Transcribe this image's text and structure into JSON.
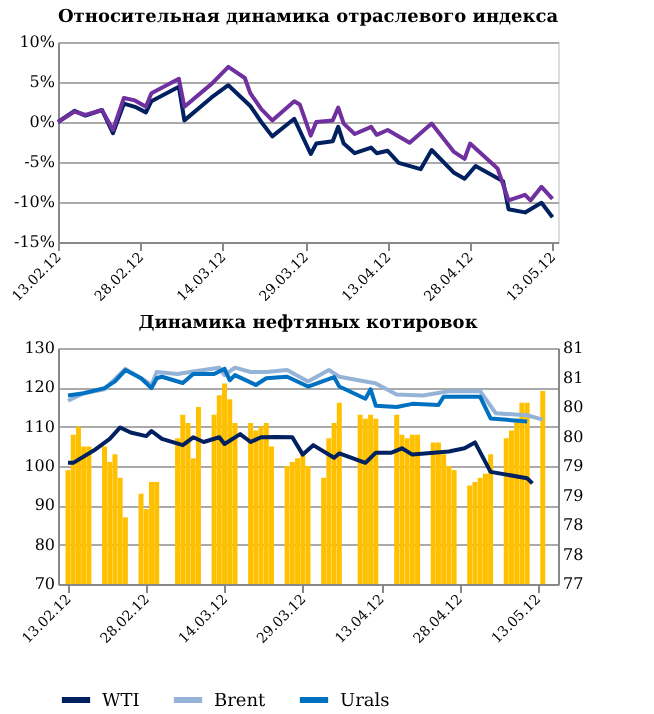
{
  "chart_data": [
    {
      "type": "line",
      "title": "Относительная динамика отраслевого индекса",
      "xlim": [
        "2012-02-13",
        "2012-05-14"
      ],
      "xticks": [
        {
          "value": "2012-02-13",
          "label": "13.02.12"
        },
        {
          "value": "2012-02-28",
          "label": "28.02.12"
        },
        {
          "value": "2012-03-14",
          "label": "14.03.12"
        },
        {
          "value": "2012-03-29",
          "label": "29.03.12"
        },
        {
          "value": "2012-04-13",
          "label": "13.04.12"
        },
        {
          "value": "2012-04-28",
          "label": "28.04.12"
        },
        {
          "value": "2012-05-13",
          "label": "13.05.12"
        }
      ],
      "ylim": [
        -15,
        10
      ],
      "yticks": [
        {
          "value": -15,
          "label": "-15%"
        },
        {
          "value": -10,
          "label": "-10%"
        },
        {
          "value": -5,
          "label": "-5%"
        },
        {
          "value": 0,
          "label": "0%"
        },
        {
          "value": 5,
          "label": "5%"
        },
        {
          "value": 10,
          "label": "10%"
        }
      ],
      "grid": "y",
      "legend": false,
      "series": [
        {
          "color": "#002060",
          "x": [
            "2012-02-13",
            "2012-02-16",
            "2012-02-18",
            "2012-02-21",
            "2012-02-23",
            "2012-02-25",
            "2012-02-27",
            "2012-02-29",
            "2012-03-01",
            "2012-03-06",
            "2012-03-07",
            "2012-03-12",
            "2012-03-15",
            "2012-03-19",
            "2012-03-21",
            "2012-03-23",
            "2012-03-27",
            "2012-03-30",
            "2012-03-31",
            "2012-04-03",
            "2012-04-04",
            "2012-04-05",
            "2012-04-07",
            "2012-04-10",
            "2012-04-11",
            "2012-04-13",
            "2012-04-15",
            "2012-04-19",
            "2012-04-21",
            "2012-04-25",
            "2012-04-27",
            "2012-04-29",
            "2012-05-04",
            "2012-05-05",
            "2012-05-08",
            "2012-05-11",
            "2012-05-13"
          ],
          "values": [
            0,
            1.4,
            0.8,
            1.5,
            -1.4,
            2.3,
            1.9,
            1.2,
            2.6,
            4.4,
            0.2,
            3.1,
            4.6,
            2.0,
            0,
            -1.8,
            0.4,
            -4.0,
            -2.7,
            -2.4,
            -0.6,
            -2.7,
            -3.9,
            -3.2,
            -3.9,
            -3.6,
            -5.1,
            -5.9,
            -3.5,
            -6.3,
            -7.1,
            -5.5,
            -7.4,
            -10.9,
            -11.3,
            -10.1,
            -11.9
          ]
        },
        {
          "color": "#7030a0",
          "x": [
            "2012-02-13",
            "2012-02-16",
            "2012-02-18",
            "2012-02-21",
            "2012-02-23",
            "2012-02-25",
            "2012-02-27",
            "2012-02-29",
            "2012-03-01",
            "2012-03-06",
            "2012-03-07",
            "2012-03-12",
            "2012-03-15",
            "2012-03-18",
            "2012-03-19",
            "2012-03-21",
            "2012-03-23",
            "2012-03-27",
            "2012-03-28",
            "2012-03-30",
            "2012-03-31",
            "2012-04-03",
            "2012-04-04",
            "2012-04-05",
            "2012-04-07",
            "2012-04-10",
            "2012-04-11",
            "2012-04-13",
            "2012-04-17",
            "2012-04-21",
            "2012-04-25",
            "2012-04-27",
            "2012-04-28",
            "2012-05-03",
            "2012-05-05",
            "2012-05-08",
            "2012-05-09",
            "2012-05-11",
            "2012-05-13"
          ],
          "values": [
            0,
            1.3,
            0.9,
            1.5,
            -1.0,
            3.0,
            2.7,
            1.9,
            3.6,
            5.4,
            1.9,
            4.8,
            6.9,
            5.5,
            3.6,
            1.6,
            0.2,
            2.6,
            2.2,
            -1.7,
            0,
            0.2,
            1.8,
            -0.2,
            -1.5,
            -0.6,
            -1.6,
            -1.0,
            -2.6,
            -0.2,
            -3.7,
            -4.6,
            -2.7,
            -5.8,
            -9.8,
            -9.1,
            -9.8,
            -8.1,
            -9.6
          ]
        }
      ]
    },
    {
      "type": "line",
      "title": "Динамика нефтяных котировок",
      "xlim": [
        "2012-02-13",
        "2012-05-15"
      ],
      "xticks": [
        {
          "value": "2012-02-13",
          "label": "13.02.12"
        },
        {
          "value": "2012-02-28",
          "label": "28.02.12"
        },
        {
          "value": "2012-03-14",
          "label": "14.03.12"
        },
        {
          "value": "2012-03-29",
          "label": "29.03.12"
        },
        {
          "value": "2012-04-13",
          "label": "13.04.12"
        },
        {
          "value": "2012-04-28",
          "label": "28.04.12"
        },
        {
          "value": "2012-05-13",
          "label": "13.05.12"
        }
      ],
      "ylim": [
        70,
        130
      ],
      "yticks": [
        70,
        80,
        90,
        100,
        110,
        120,
        130
      ],
      "y2lim": [
        77,
        81
      ],
      "y2ticks": [
        77,
        {
          "value": 77.5,
          "label": "78"
        },
        78,
        {
          "value": 78.5,
          "label": "79"
        },
        79,
        {
          "value": 79.5,
          "label": "80"
        },
        80,
        {
          "value": 80.5,
          "label": "81"
        },
        81
      ],
      "grid": "y",
      "legend": "bottom",
      "series": [
        {
          "type": "bar",
          "axis": "y2",
          "color": "#ffc000",
          "x": [
            "2012-02-13",
            "2012-02-14",
            "2012-02-15",
            "2012-02-16",
            "2012-02-17",
            "2012-02-20",
            "2012-02-21",
            "2012-02-22",
            "2012-02-23",
            "2012-02-24",
            "2012-02-27",
            "2012-02-28",
            "2012-02-29",
            "2012-03-01",
            "2012-03-05",
            "2012-03-06",
            "2012-03-07",
            "2012-03-08",
            "2012-03-09",
            "2012-03-12",
            "2012-03-13",
            "2012-03-14",
            "2012-03-15",
            "2012-03-16",
            "2012-03-19",
            "2012-03-20",
            "2012-03-21",
            "2012-03-22",
            "2012-03-23",
            "2012-03-26",
            "2012-03-27",
            "2012-03-28",
            "2012-03-29",
            "2012-03-30",
            "2012-04-02",
            "2012-04-03",
            "2012-04-04",
            "2012-04-05",
            "2012-04-09",
            "2012-04-10",
            "2012-04-11",
            "2012-04-12",
            "2012-04-16",
            "2012-04-17",
            "2012-04-18",
            "2012-04-19",
            "2012-04-20",
            "2012-04-23",
            "2012-04-24",
            "2012-04-25",
            "2012-04-26",
            "2012-04-27",
            "2012-04-30",
            "2012-05-01",
            "2012-05-02",
            "2012-05-03",
            "2012-05-04",
            "2012-05-07",
            "2012-05-08",
            "2012-05-09",
            "2012-05-10",
            "2012-05-11",
            "2012-05-14"
          ],
          "values": [
            78.93,
            79.53,
            79.67,
            79.33,
            79.33,
            79.33,
            79.07,
            79.2,
            78.8,
            78.13,
            78.53,
            78.27,
            78.73,
            78.73,
            79.47,
            79.87,
            79.73,
            79.13,
            80.0,
            79.87,
            80.2,
            80.4,
            80.13,
            79.73,
            79.73,
            79.6,
            79.67,
            79.73,
            79.33,
            79.0,
            79.07,
            79.13,
            79.2,
            79.0,
            78.8,
            79.47,
            79.73,
            80.07,
            79.87,
            79.8,
            79.87,
            79.8,
            79.87,
            79.53,
            79.47,
            79.53,
            79.53,
            79.4,
            79.4,
            79.2,
            79.0,
            78.93,
            78.67,
            78.73,
            78.8,
            78.87,
            79.2,
            79.47,
            79.6,
            79.8,
            80.07,
            80.07,
            80.27
          ]
        },
        {
          "name": "WTI",
          "color": "#002060",
          "x": [
            "2012-02-13",
            "2012-02-14",
            "2012-02-18",
            "2012-02-21",
            "2012-02-23",
            "2012-02-25",
            "2012-02-28",
            "2012-02-29",
            "2012-03-02",
            "2012-03-06",
            "2012-03-08",
            "2012-03-10",
            "2012-03-13",
            "2012-03-14",
            "2012-03-17",
            "2012-03-19",
            "2012-03-21",
            "2012-03-24",
            "2012-03-27",
            "2012-03-29",
            "2012-03-31",
            "2012-04-04",
            "2012-04-05",
            "2012-04-10",
            "2012-04-12",
            "2012-04-15",
            "2012-04-17",
            "2012-04-19",
            "2012-04-26",
            "2012-04-29",
            "2012-05-01",
            "2012-05-04",
            "2012-05-11",
            "2012-05-12"
          ],
          "values": [
            100.8,
            100.8,
            104.0,
            106.9,
            109.8,
            108.5,
            107.6,
            108.9,
            106.9,
            105.3,
            107.3,
            106.1,
            107.3,
            105.6,
            108.1,
            106.1,
            107.3,
            107.4,
            107.3,
            102.9,
            105.3,
            102.1,
            103.2,
            100.8,
            103.4,
            103.4,
            104.5,
            102.9,
            103.7,
            104.5,
            106.0,
            98.5,
            96.9,
            95.6
          ]
        },
        {
          "name": "Brent",
          "color": "#95b3d7",
          "x": [
            "2012-02-13",
            "2012-02-16",
            "2012-02-20",
            "2012-02-24",
            "2012-02-27",
            "2012-02-29",
            "2012-03-01",
            "2012-03-05",
            "2012-03-08",
            "2012-03-13",
            "2012-03-14",
            "2012-03-16",
            "2012-03-19",
            "2012-03-22",
            "2012-03-26",
            "2012-03-30",
            "2012-04-03",
            "2012-04-05",
            "2012-04-10",
            "2012-04-12",
            "2012-04-16",
            "2012-04-21",
            "2012-04-26",
            "2012-05-02",
            "2012-05-05",
            "2012-05-11",
            "2012-05-14"
          ],
          "values": [
            116.6,
            118.5,
            119.5,
            124.7,
            122.3,
            120.6,
            123.9,
            123.4,
            124.0,
            125.0,
            123.1,
            125.0,
            123.9,
            123.9,
            124.4,
            121.5,
            124.4,
            122.7,
            121.5,
            121.0,
            118.2,
            117.9,
            119.0,
            119.0,
            113.4,
            112.9,
            111.8
          ]
        },
        {
          "name": "Urals",
          "color": "#0070c0",
          "x": [
            "2012-02-13",
            "2012-02-16",
            "2012-02-20",
            "2012-02-22",
            "2012-02-24",
            "2012-02-27",
            "2012-02-29",
            "2012-03-01",
            "2012-03-02",
            "2012-03-06",
            "2012-03-08",
            "2012-03-12",
            "2012-03-14",
            "2012-03-15",
            "2012-03-16",
            "2012-03-20",
            "2012-03-22",
            "2012-03-26",
            "2012-03-30",
            "2012-04-04",
            "2012-04-05",
            "2012-04-10",
            "2012-04-11",
            "2012-04-12",
            "2012-04-16",
            "2012-04-19",
            "2012-04-24",
            "2012-04-25",
            "2012-05-02",
            "2012-05-04",
            "2012-05-11"
          ],
          "values": [
            117.9,
            118.5,
            119.8,
            121.5,
            124.4,
            122.3,
            119.8,
            122.3,
            122.7,
            121.1,
            123.4,
            123.4,
            124.7,
            121.8,
            123.1,
            120.6,
            122.3,
            122.7,
            120.2,
            122.6,
            120.2,
            117.1,
            119.5,
            115.3,
            115.0,
            115.8,
            115.5,
            117.6,
            117.6,
            112.1,
            111.3
          ]
        }
      ]
    }
  ]
}
